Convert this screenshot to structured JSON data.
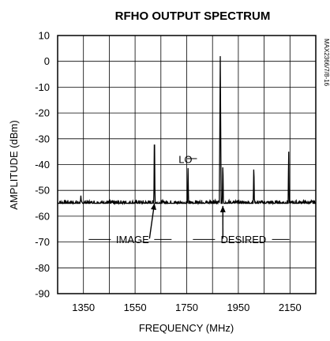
{
  "chart_data": {
    "type": "line",
    "title": "RFHO OUTPUT SPECTRUM",
    "xlabel": "FREQUENCY (MHz)",
    "ylabel": "AMPLITUDE (dBm)",
    "side_label": "MAX2366/7/8-16",
    "xlim": [
      1250,
      2250
    ],
    "ylim": [
      -90,
      10
    ],
    "x_ticks": [
      1350,
      1550,
      1750,
      1950,
      2150
    ],
    "x_tick_labels": [
      "1350",
      "1550",
      "1750",
      "1950",
      "2150"
    ],
    "y_ticks": [
      10,
      0,
      -10,
      -20,
      -30,
      -40,
      -50,
      -60,
      -70,
      -80,
      -90
    ],
    "y_tick_labels": [
      "10",
      "0",
      "-10",
      "-20",
      "-30",
      "-40",
      "-50",
      "-60",
      "-70",
      "-80",
      "-90"
    ],
    "noise_floor": -55,
    "grid": true,
    "series": [
      {
        "color": "#000000",
        "peaks": [
          {
            "x": 1340,
            "y": -52
          },
          {
            "x": 1625,
            "y": -24
          },
          {
            "x": 1755,
            "y": -40
          },
          {
            "x": 1880,
            "y": 2
          },
          {
            "x": 1890,
            "y": -38
          },
          {
            "x": 2010,
            "y": -39
          },
          {
            "x": 2145,
            "y": -33
          }
        ]
      }
    ],
    "annotations": [
      {
        "text": "LO",
        "x": 1745,
        "y": -38,
        "target": [
          1755,
          -40
        ]
      },
      {
        "text": "IMAGE",
        "x": 1540,
        "y": -69,
        "target": [
          1625,
          -55
        ]
      },
      {
        "text": "DESIRED",
        "x": 1970,
        "y": -69,
        "target": [
          1890,
          -56
        ]
      }
    ]
  }
}
